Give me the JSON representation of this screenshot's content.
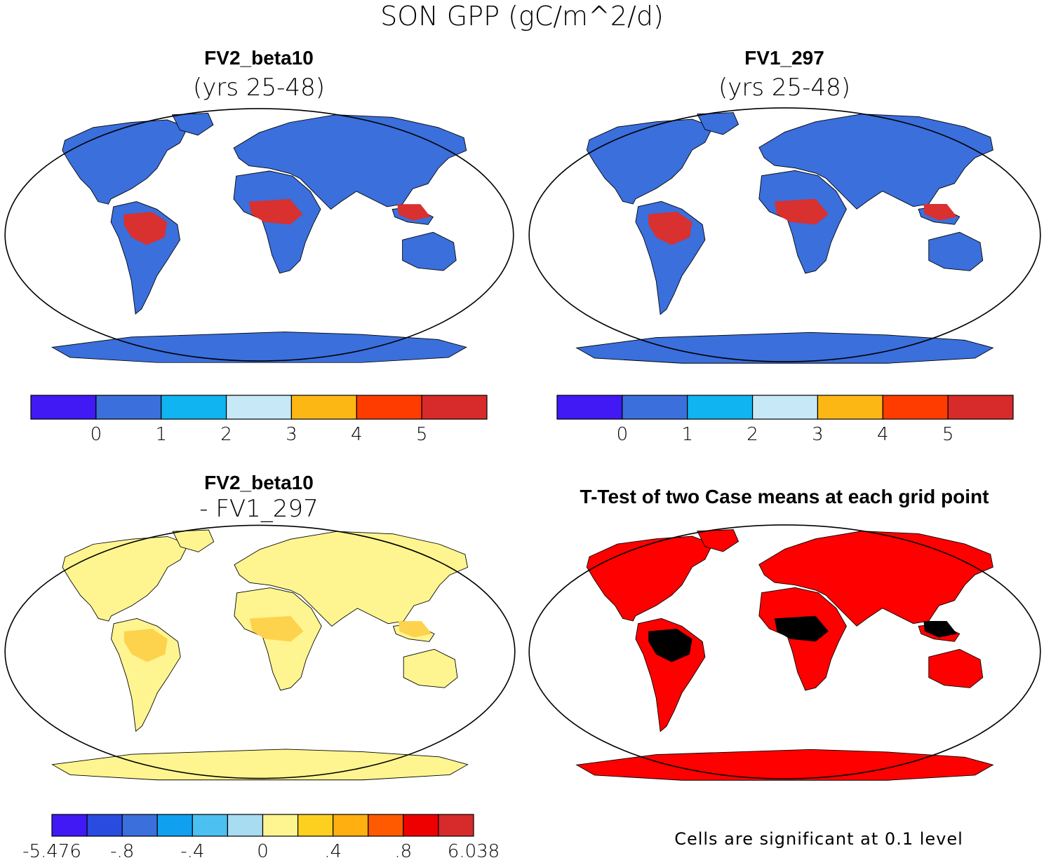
{
  "figure": {
    "title": "SON GPP (gC/m^2/d)"
  },
  "panels": [
    {
      "id": "fv2",
      "title": "FV2_beta10",
      "subtitle": "(yrs 25-48)",
      "land_fill": "#3a6fdc",
      "tropic_fill": "#d93030",
      "colorbar": {
        "colors": [
          "#4019f5",
          "#3a6fdc",
          "#10b4f0",
          "#c6e8f7",
          "#fdb714",
          "#ff3c00",
          "#d72a2a"
        ],
        "labels": [
          "0",
          "1",
          "2",
          "3",
          "4",
          "5"
        ]
      }
    },
    {
      "id": "fv1",
      "title": "FV1_297",
      "subtitle": "(yrs 25-48)",
      "land_fill": "#3a6fdc",
      "tropic_fill": "#d93030",
      "colorbar": {
        "colors": [
          "#4019f5",
          "#3a6fdc",
          "#10b4f0",
          "#c6e8f7",
          "#fdb714",
          "#ff3c00",
          "#d72a2a"
        ],
        "labels": [
          "0",
          "1",
          "2",
          "3",
          "4",
          "5"
        ]
      }
    },
    {
      "id": "diff",
      "title": "FV2_beta10",
      "subtitle": "- FV1_297",
      "land_fill": "#fff590",
      "tropic_fill": "#fdd34d",
      "colorbar": {
        "colors": [
          "#4019f5",
          "#2a4be0",
          "#3a6fdc",
          "#10a0f0",
          "#4cc0f0",
          "#a8dcf0",
          "#fff590",
          "#fdd020",
          "#ffb010",
          "#ff5a00",
          "#ee0000",
          "#d72a2a"
        ],
        "labels": [
          "-5.476",
          "-.8",
          "-.4",
          "0",
          ".4",
          ".8",
          "6.038"
        ]
      }
    },
    {
      "id": "ttest",
      "title": "T-Test of two Case means at each grid point",
      "land_fill": "#ff0000",
      "note": "Cells are significant at 0.1 level"
    }
  ]
}
